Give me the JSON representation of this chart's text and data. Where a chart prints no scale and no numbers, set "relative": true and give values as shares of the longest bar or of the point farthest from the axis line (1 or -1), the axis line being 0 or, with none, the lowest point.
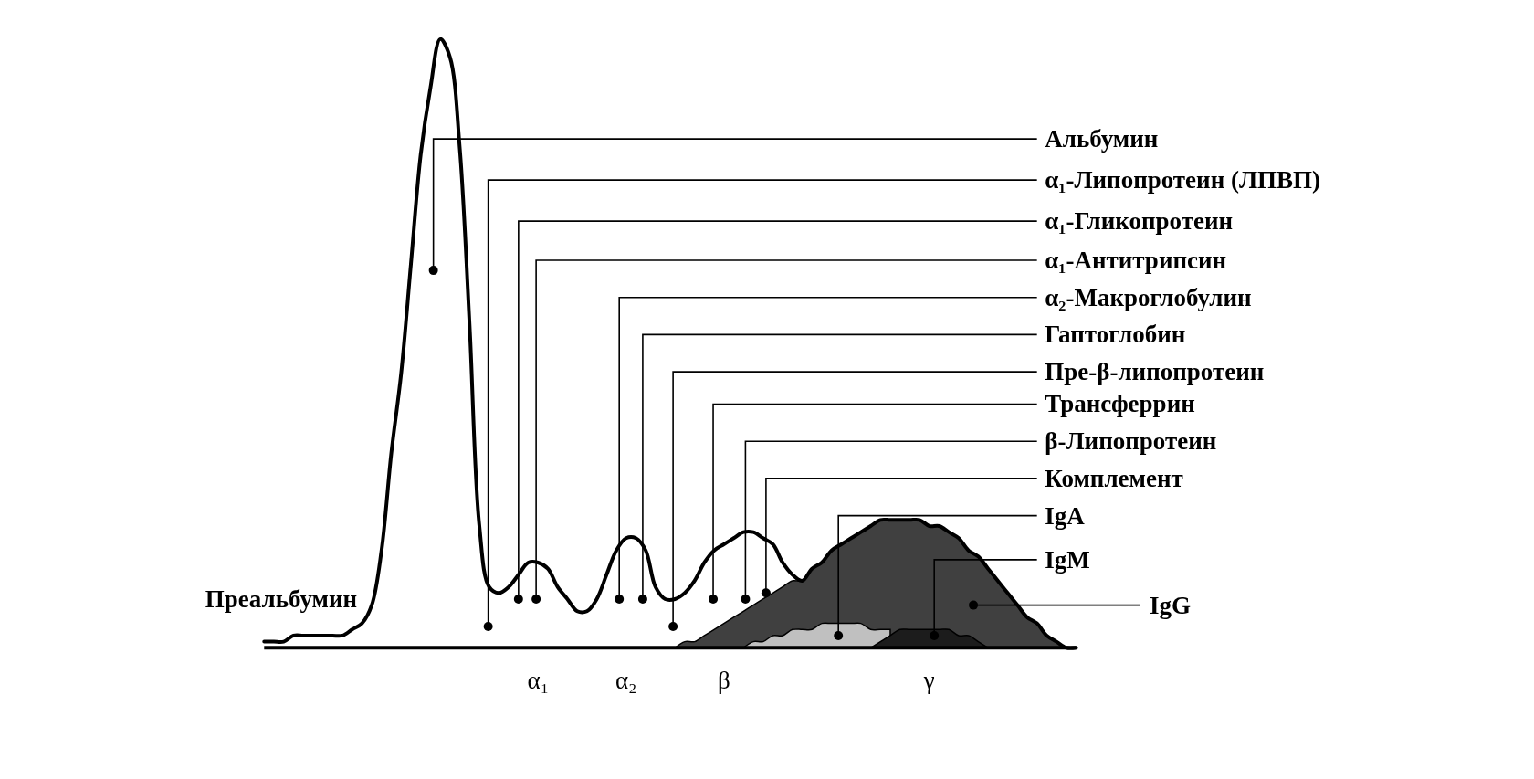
{
  "chart_data": {
    "type": "line",
    "relative": true,
    "categories": [
      null,
      null,
      null,
      null,
      null,
      null,
      null,
      null,
      null,
      null,
      null,
      null,
      null,
      null,
      null,
      null,
      null,
      null,
      null,
      null,
      null,
      null,
      null,
      null,
      null,
      null,
      null,
      null,
      "α₁",
      null,
      null,
      null,
      null,
      null,
      null,
      null,
      null,
      "α₂",
      null,
      null,
      null,
      null,
      null,
      null,
      null,
      null,
      null,
      "β",
      null,
      null,
      null,
      null,
      null,
      null,
      null,
      null,
      null,
      null,
      null,
      null,
      null,
      null,
      null,
      null,
      null,
      null,
      null,
      null,
      "γ",
      null,
      null,
      null,
      null,
      null,
      null,
      null,
      null,
      null,
      null,
      null,
      null,
      null,
      null,
      null
    ],
    "series": [
      {
        "type": "area",
        "name": "IgG",
        "color": "#404040",
        "values": [
          null,
          null,
          null,
          null,
          null,
          null,
          null,
          null,
          null,
          null,
          null,
          null,
          null,
          null,
          null,
          null,
          null,
          null,
          null,
          null,
          null,
          null,
          null,
          null,
          null,
          null,
          null,
          null,
          null,
          null,
          null,
          null,
          null,
          null,
          null,
          null,
          null,
          null,
          null,
          null,
          null,
          null,
          0,
          0.01,
          0.01,
          0.02,
          0.03,
          0.04,
          0.05,
          0.06,
          0.07,
          0.08,
          0.09,
          0.1,
          0.11,
          0.11,
          0.13,
          0.14,
          0.16,
          0.17,
          0.18,
          0.19,
          0.2,
          0.21,
          0.21,
          0.21,
          0.21,
          0.21,
          0.2,
          0.2,
          0.19,
          0.18,
          0.16,
          0.15,
          0.13,
          0.11,
          0.09,
          0.07,
          0.05,
          0.04,
          0.02,
          0.01,
          0,
          0
        ]
      },
      {
        "type": "area",
        "name": "IgA",
        "color": "#c0c0c0",
        "values": [
          null,
          null,
          null,
          null,
          null,
          null,
          null,
          null,
          null,
          null,
          null,
          null,
          null,
          null,
          null,
          null,
          null,
          null,
          null,
          null,
          null,
          null,
          null,
          null,
          null,
          null,
          null,
          null,
          null,
          null,
          null,
          null,
          null,
          null,
          null,
          null,
          null,
          null,
          null,
          null,
          null,
          null,
          null,
          null,
          null,
          null,
          null,
          null,
          null,
          0,
          0.01,
          0.01,
          0.02,
          0.02,
          0.03,
          0.03,
          0.03,
          0.04,
          0.04,
          0.04,
          0.04,
          0.04,
          0.03,
          0.03,
          0.03,
          null,
          null,
          null,
          null,
          null,
          null,
          null,
          null,
          null,
          null,
          null,
          null,
          null,
          null,
          null,
          null,
          null,
          null,
          null
        ]
      },
      {
        "type": "area",
        "name": "IgM",
        "color": "#1c1c1c",
        "values": [
          null,
          null,
          null,
          null,
          null,
          null,
          null,
          null,
          null,
          null,
          null,
          null,
          null,
          null,
          null,
          null,
          null,
          null,
          null,
          null,
          null,
          null,
          null,
          null,
          null,
          null,
          null,
          null,
          null,
          null,
          null,
          null,
          null,
          null,
          null,
          null,
          null,
          null,
          null,
          null,
          null,
          null,
          null,
          null,
          null,
          null,
          null,
          null,
          null,
          null,
          null,
          null,
          null,
          null,
          null,
          null,
          null,
          null,
          null,
          null,
          null,
          null,
          0,
          0.01,
          0.02,
          0.03,
          0.03,
          0.03,
          0.03,
          0.03,
          0.03,
          0.02,
          0.02,
          0.01,
          0,
          null,
          null,
          null,
          null,
          null,
          null,
          null,
          null,
          null
        ]
      },
      {
        "color": "#000000",
        "values": [
          0.01,
          0.01,
          0.01,
          0.02,
          0.02,
          0.02,
          0.02,
          0.02,
          0.02,
          0.03,
          0.04,
          0.07,
          0.16,
          0.32,
          0.45,
          0.63,
          0.81,
          0.92,
          1,
          0.97,
          0.82,
          0.53,
          0.2,
          0.1,
          0.09,
          0.1,
          0.12,
          0.14,
          0.14,
          0.13,
          0.1,
          0.08,
          0.06,
          0.06,
          0.08,
          0.12,
          0.16,
          0.18,
          0.18,
          0.16,
          0.1,
          0.08,
          0.08,
          0.09,
          0.11,
          0.14,
          0.16,
          0.17,
          0.18,
          0.19,
          0.19,
          0.18,
          0.17,
          0.14,
          0.12,
          0.11,
          0.13,
          0.14,
          0.16,
          0.17,
          0.18,
          0.19,
          0.2,
          0.21,
          0.21,
          0.21,
          0.21,
          0.21,
          0.2,
          0.2,
          0.19,
          0.18,
          0.16,
          0.15,
          0.13,
          0.11,
          0.09,
          0.07,
          0.05,
          0.04,
          0.02,
          0.01,
          0,
          0
        ]
      }
    ],
    "annotations": [
      "Преальбумин",
      "Альбумин",
      "α₁-Липопротеин (ЛПВП)",
      "α₁-Гликопротеин",
      "α₁-Антитрипсин",
      "α₂-Макроглобулин",
      "Гаптоглобин",
      "Пре-β-липопротеин",
      "Трансферрин",
      "β-Липопротеин",
      "Комплемент"
    ]
  }
}
